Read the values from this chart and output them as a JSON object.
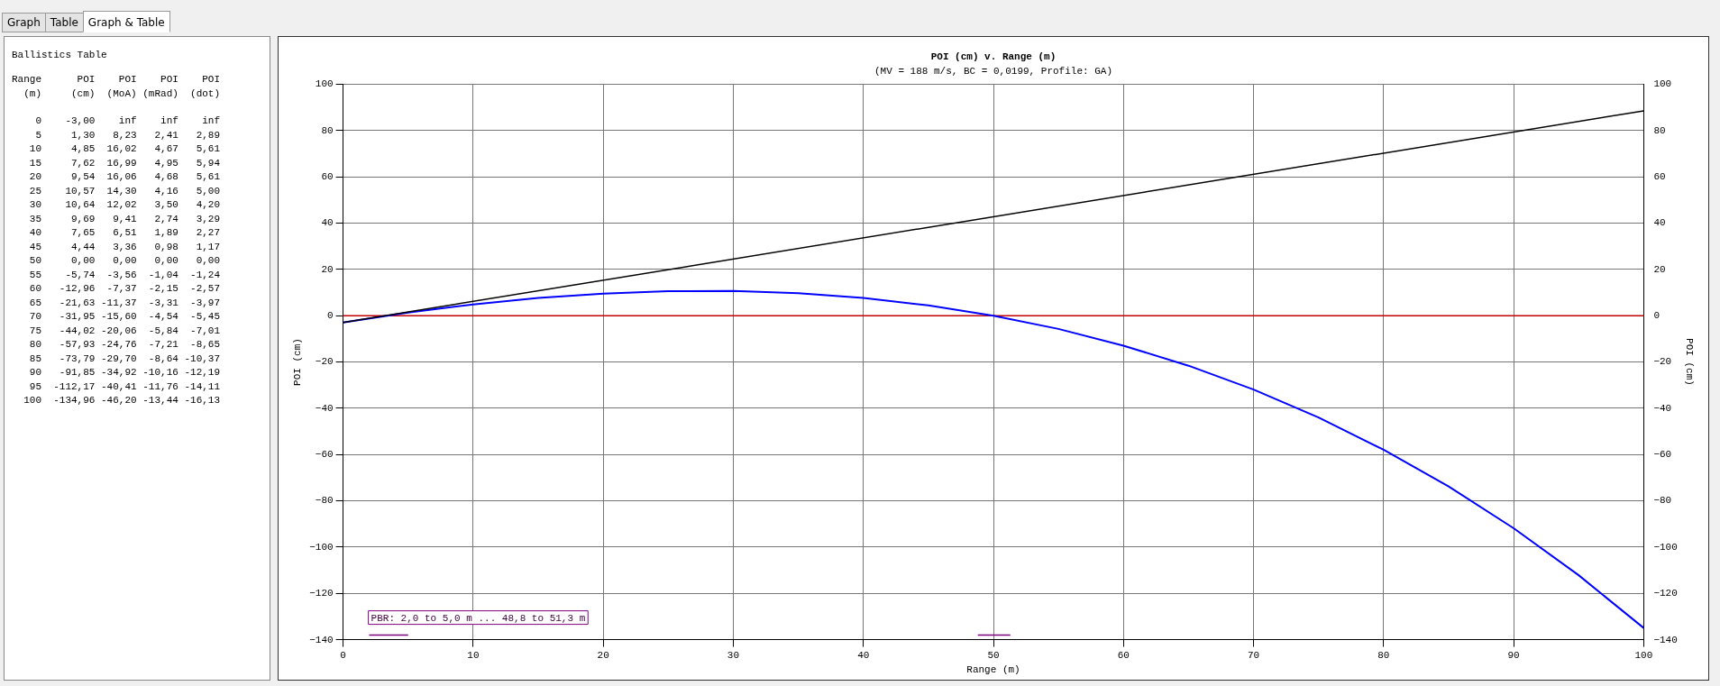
{
  "chart_data": [
    {
      "type": "other",
      "annotations": [
        "Graph",
        "Table",
        "Graph & Table"
      ]
    },
    {
      "type": "other",
      "title": "Ballistics Table",
      "annotations": [
        "Range      POI    POI    POI    POI",
        "  (m)     (cm)  (MoA) (mRad)  (dot)",
        "    0    -3,00    inf    inf    inf",
        "    5     1,30   8,23   2,41   2,89",
        "   10     4,85  16,02   4,67   5,61",
        "   15     7,62  16,99   4,95   5,94",
        "   20     9,54  16,06   4,68   5,61",
        "   25    10,57  14,30   4,16   5,00",
        "   30    10,64  12,02   3,50   4,20",
        "   35     9,69   9,41   2,74   3,29",
        "   40     7,65   6,51   1,89   2,27",
        "   45     4,44   3,36   0,98   1,17",
        "   50     0,00   0,00   0,00   0,00",
        "   55    -5,74  -3,56  -1,04  -1,24",
        "   60   -12,96  -7,37  -2,15  -2,57",
        "   65   -21,63 -11,37  -3,31  -3,97",
        "   70   -31,95 -15,60  -4,54  -5,45",
        "   75   -44,02 -20,06  -5,84  -7,01",
        "   80   -57,93 -24,76  -7,21  -8,65",
        "   85   -73,79 -29,70  -8,64 -10,37",
        "   90   -91,85 -34,92 -10,16 -12,19",
        "   95  -112,17 -40,41 -11,76 -14,11",
        "  100  -134,96 -46,20 -13,44 -16,13"
      ]
    },
    {
      "type": "line",
      "title": "POI (cm) v. Range (m)",
      "subtitle": "(MV = 188 m/s, BC = 0,0199, Profile: GA)",
      "xlabel": "Range (m)",
      "ylabel": "POI (cm)",
      "y2label": "POI (cm)",
      "xlim": [
        0,
        100
      ],
      "xticks": [
        0,
        10,
        20,
        30,
        40,
        50,
        60,
        70,
        80,
        90,
        100
      ],
      "ylim": [
        -140,
        100
      ],
      "yticks": [
        -140,
        -120,
        -100,
        -80,
        -60,
        -40,
        -20,
        0,
        20,
        40,
        60,
        80,
        100
      ],
      "y2lim": [
        -140,
        100
      ],
      "y2ticks": [
        -140,
        -120,
        -100,
        -80,
        -60,
        -40,
        -20,
        0,
        20,
        40,
        60,
        80,
        100
      ],
      "grid": true,
      "legend": false,
      "marker": "none",
      "series": [
        {
          "color": "#000000",
          "x": [
            0,
            100
          ],
          "values": [
            -3,
            88.5
          ]
        },
        {
          "color": "#0000ff",
          "x": [
            0,
            5,
            10,
            15,
            20,
            25,
            30,
            35,
            40,
            45,
            50,
            55,
            60,
            65,
            70,
            75,
            80,
            85,
            90,
            95,
            100
          ],
          "values": [
            -3.0,
            1.3,
            4.85,
            7.62,
            9.54,
            10.57,
            10.64,
            9.69,
            7.65,
            4.44,
            0.0,
            -5.74,
            -12.96,
            -21.63,
            -31.95,
            -44.02,
            -57.93,
            -73.79,
            -91.85,
            -112.17,
            -134.96
          ]
        },
        {
          "color": "#800080",
          "x": [
            2,
            5
          ],
          "values": [
            -138,
            -138
          ]
        },
        {
          "color": "#800080",
          "x": [
            48.8,
            51.3
          ],
          "values": [
            -138,
            -138
          ]
        }
      ],
      "ref_lines": [
        {
          "axis": "y",
          "value": 0,
          "color": "#c00000"
        }
      ],
      "annotations": [
        "PBR: 2,0 to 5,0 m ... 48,8 to 51,3 m"
      ]
    }
  ]
}
